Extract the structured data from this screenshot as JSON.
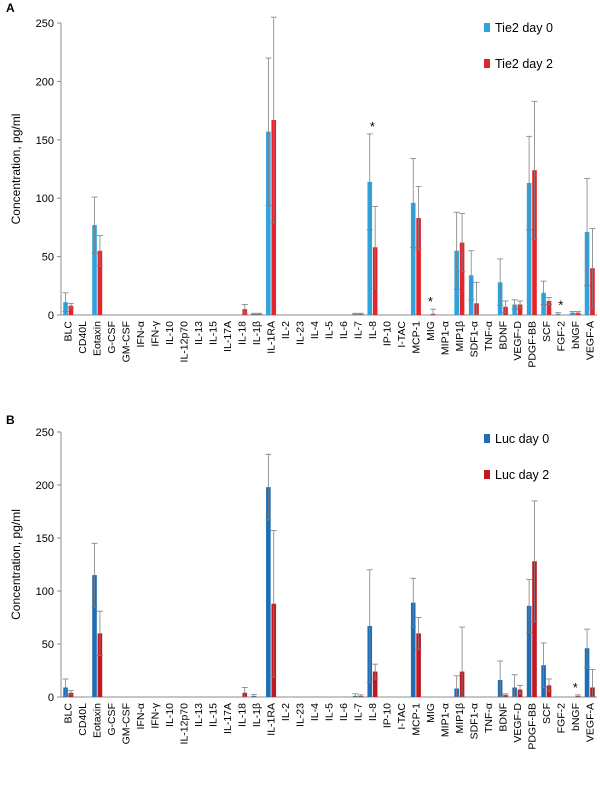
{
  "chart_data": [
    {
      "type": "bar",
      "panel_label": "A",
      "ylabel": "Concentration, pg/ml",
      "ylim": [
        0,
        250
      ],
      "yticks": [
        0,
        50,
        100,
        150,
        200,
        250
      ],
      "grid": false,
      "legend_position": "top-right",
      "categories": [
        "BLC",
        "CD40L",
        "Eotaxin",
        "G-CSF",
        "GM-CSF",
        "IFN-α",
        "IFN-γ",
        "IL-10",
        "IL-12p70",
        "IL-13",
        "IL-15",
        "IL-17A",
        "IL-18",
        "IL-1β",
        "IL-1RA",
        "IL-2",
        "IL-23",
        "IL-4",
        "IL-5",
        "IL-6",
        "IL-7",
        "IL-8",
        "IP-10",
        "I-TAC",
        "MCP-1",
        "MIG",
        "MIP1-α",
        "MIP1β",
        "SDF1-α",
        "TNF-α",
        "BDNF",
        "VEGF-D",
        "PDGF-BB",
        "SCF",
        "FGF-2",
        "bNGF",
        "VEGF-A"
      ],
      "series": [
        {
          "name": "Tie2  day 0",
          "color": "#2ea3dc",
          "values": [
            11,
            0,
            77,
            0,
            0,
            0,
            0,
            0,
            0,
            0,
            0,
            0,
            0,
            1,
            157,
            0,
            0,
            0,
            0,
            0,
            1,
            114,
            0,
            0,
            96,
            0,
            0,
            55,
            34,
            0,
            28,
            9,
            113,
            19,
            1,
            2,
            71
          ],
          "errors": [
            8,
            0,
            24,
            0,
            0,
            0,
            0,
            0,
            0,
            0,
            0,
            0,
            0,
            0.5,
            63,
            0,
            0,
            0,
            0,
            0,
            0.5,
            41,
            0,
            0,
            38,
            0,
            0,
            33,
            21,
            0,
            20,
            4,
            40,
            10,
            1,
            1,
            46
          ]
        },
        {
          "name": "Tie2 day 2",
          "color": "#e3242b",
          "values": [
            8,
            0,
            55,
            0,
            0,
            0,
            0,
            0,
            0,
            0,
            0,
            0,
            5,
            1,
            167,
            0,
            0,
            0,
            0,
            0,
            1,
            58,
            0,
            0,
            83,
            1,
            0,
            62,
            10,
            0,
            7,
            9,
            124,
            12,
            0,
            2,
            40
          ],
          "errors": [
            2,
            0,
            13,
            0,
            0,
            0,
            0,
            0,
            0,
            0,
            0,
            0,
            4,
            0.5,
            88,
            0,
            0,
            0,
            0,
            0,
            0.5,
            35,
            0,
            0,
            27,
            4,
            0,
            25,
            18,
            0,
            5,
            3,
            59,
            3,
            0,
            1,
            34
          ]
        }
      ],
      "significance": [
        {
          "category": "IL-8",
          "label": "*"
        },
        {
          "category": "MIG",
          "label": "*"
        },
        {
          "category": "FGF-2",
          "label": "*"
        }
      ]
    },
    {
      "type": "bar",
      "panel_label": "B",
      "ylabel": "Concentration, pg/ml",
      "ylim": [
        0,
        250
      ],
      "yticks": [
        0,
        50,
        100,
        150,
        200,
        250
      ],
      "grid": false,
      "legend_position": "top-right",
      "categories": [
        "BLC",
        "CD40L",
        "Eotaxin",
        "G-CSF",
        "GM-CSF",
        "IFN-α",
        "IFN-γ",
        "IL-10",
        "IL-12p70",
        "IL-13",
        "IL-15",
        "IL-17A",
        "IL-18",
        "IL-1β",
        "IL-1RA",
        "IL-2",
        "IL-23",
        "IL-4",
        "IL-5",
        "IL-6",
        "IL-7",
        "IL-8",
        "IP-10",
        "I-TAC",
        "MCP-1",
        "MIG",
        "MIP1-α",
        "MIP1β",
        "SDF1-α",
        "TNF-α",
        "BDNF",
        "VEGF-D",
        "PDGF-BB",
        "SCF",
        "FGF-2",
        "bNGF",
        "VEGF-A"
      ],
      "series": [
        {
          "name": "Luc day 0",
          "color": "#1f6eb5",
          "values": [
            9,
            0,
            115,
            0,
            0,
            0,
            0,
            0,
            0,
            0,
            0,
            0,
            0,
            1,
            198,
            0,
            0,
            0,
            0,
            0,
            1,
            67,
            0,
            0,
            89,
            0,
            0,
            8,
            0,
            0,
            16,
            9,
            86,
            30,
            0,
            0,
            46
          ],
          "errors": [
            8,
            0,
            30,
            0,
            0,
            0,
            0,
            0,
            0,
            0,
            0,
            0,
            0,
            1.5,
            31,
            0,
            0,
            0,
            0,
            0,
            2,
            53,
            0,
            0,
            23,
            0,
            0,
            12,
            0,
            0,
            18,
            12,
            25,
            21,
            0,
            0,
            18
          ]
        },
        {
          "name": "Luc day 2",
          "color": "#c0191f",
          "values": [
            4,
            0,
            60,
            0,
            0,
            0,
            0,
            0,
            0,
            0,
            0,
            0,
            4,
            0,
            88,
            0,
            0,
            0,
            0,
            0,
            1,
            24,
            0,
            0,
            60,
            0,
            0,
            24,
            0,
            0,
            2,
            7,
            128,
            11,
            0,
            1,
            9
          ],
          "errors": [
            2,
            0,
            21,
            0,
            0,
            0,
            0,
            0,
            0,
            0,
            0,
            0,
            5,
            0,
            69,
            0,
            0,
            0,
            0,
            0,
            1,
            7,
            0,
            0,
            15,
            0,
            0,
            42,
            0,
            0,
            1,
            4,
            57,
            6,
            0,
            1,
            17
          ]
        }
      ],
      "significance": [
        {
          "category": "bNGF",
          "label": "*"
        }
      ]
    }
  ]
}
